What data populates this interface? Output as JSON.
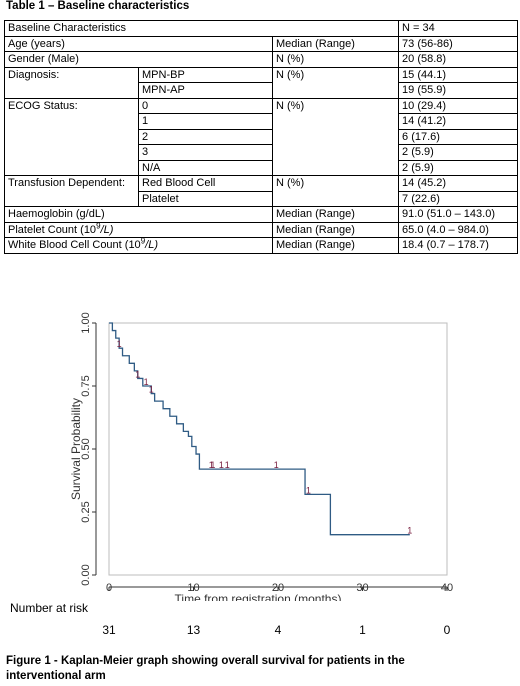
{
  "table_title": "Table 1 – Baseline characteristics",
  "table": {
    "header": [
      "Baseline Characteristics",
      "N = 34"
    ],
    "age": [
      "Age (years)",
      "Median (Range)",
      "73 (56-86)"
    ],
    "gender": [
      "Gender (Male)",
      "N (%)",
      "20 (58.8)"
    ],
    "diagnosis": {
      "label": "Diagnosis:",
      "stat": "N (%)",
      "rows": [
        [
          "MPN-BP",
          "15 (44.1)"
        ],
        [
          "MPN-AP",
          "19 (55.9)"
        ]
      ]
    },
    "ecog": {
      "label": "ECOG Status:",
      "stat": "N (%)",
      "rows": [
        [
          "0",
          "10 (29.4)"
        ],
        [
          "1",
          "14 (41.2)"
        ],
        [
          "2",
          "6 (17.6)"
        ],
        [
          "3",
          "2 (5.9)"
        ],
        [
          "N/A",
          "2 (5.9)"
        ]
      ]
    },
    "transfusion": {
      "label": "Transfusion Dependent:",
      "stat": "N (%)",
      "rows": [
        [
          "Red Blood Cell",
          "14 (45.2)"
        ],
        [
          "Platelet",
          "7 (22.6)"
        ]
      ]
    },
    "haemoglobin": [
      "Haemoglobin (g/dL)",
      "Median (Range)",
      "91.0 (51.0 – 143.0)"
    ],
    "platelet": [
      "Platelet Count (10",
      "9",
      "/L)",
      "Median (Range)",
      "65.0 (4.0 – 984.0)"
    ],
    "wbc": [
      "White Blood Cell Count (10",
      "9",
      "/L)",
      "Median (Range)",
      "18.4 (0.7 – 178.7)"
    ]
  },
  "chart_data": {
    "type": "line",
    "xlabel": "Time from registration (months)",
    "ylabel": "Survival Probability",
    "xlim": [
      0,
      40
    ],
    "ylim": [
      0,
      1
    ],
    "x_ticks": [
      0,
      10,
      20,
      30,
      40
    ],
    "y_ticks": [
      "0.00",
      "0.25",
      "0.50",
      "0.75",
      "1.00"
    ],
    "series": [
      {
        "steps": [
          [
            0,
            1.0
          ],
          [
            0.4,
            0.97
          ],
          [
            0.8,
            0.94
          ],
          [
            1.2,
            0.9
          ],
          [
            1.6,
            0.87
          ],
          [
            2.4,
            0.84
          ],
          [
            3.0,
            0.81
          ],
          [
            3.4,
            0.78
          ],
          [
            4.0,
            0.75
          ],
          [
            5.0,
            0.72
          ],
          [
            5.4,
            0.69
          ],
          [
            6.4,
            0.66
          ],
          [
            7.2,
            0.63
          ],
          [
            8.0,
            0.6
          ],
          [
            8.8,
            0.57
          ],
          [
            9.4,
            0.55
          ],
          [
            9.8,
            0.51
          ],
          [
            10.3,
            0.48
          ],
          [
            10.7,
            0.42
          ],
          [
            23.2,
            0.32
          ],
          [
            26.2,
            0.16
          ],
          [
            35.6,
            0.16
          ]
        ],
        "censor_x": [
          1.2,
          3.4,
          4.4,
          5.0,
          12.1,
          12.3,
          13.3,
          14.0,
          19.8,
          23.6,
          35.6
        ]
      }
    ],
    "censor_label": "1",
    "color": "#2f5b84",
    "censor_color": "#7a2040"
  },
  "risk": {
    "title": "Number at risk",
    "values": [
      31,
      13,
      4,
      1,
      0
    ],
    "times": [
      0,
      10,
      20,
      30,
      40
    ]
  },
  "caption": "Figure 1 - Kaplan-Meier graph showing overall survival for patients in the interventional arm"
}
